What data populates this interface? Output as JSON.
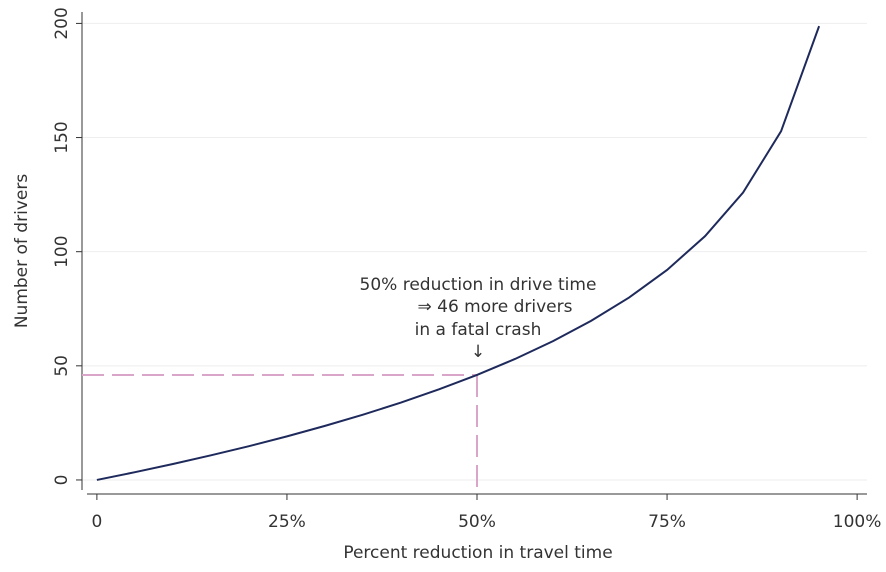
{
  "chart_data": {
    "type": "line",
    "x_label": "Percent reduction in travel time",
    "y_label": "Number of drivers",
    "x": [
      0,
      5,
      10,
      15,
      20,
      25,
      30,
      35,
      40,
      45,
      50,
      55,
      60,
      65,
      70,
      75,
      80,
      85,
      90,
      95
    ],
    "series": [
      {
        "color": "#1f2a5c",
        "values": [
          0,
          3.4,
          7.0,
          10.8,
          14.8,
          19.1,
          23.7,
          28.6,
          33.9,
          39.7,
          46,
          53.0,
          60.8,
          69.7,
          79.9,
          92.0,
          106.8,
          125.9,
          152.8,
          198.8
        ]
      }
    ],
    "xlim": [
      -1.3,
      101.3
    ],
    "ylim": [
      -4.4,
      205
    ],
    "xticks": [
      0,
      {
        "value": 25,
        "label": "25%"
      },
      {
        "value": 50,
        "label": "50%"
      },
      {
        "value": 75,
        "label": "75%"
      },
      {
        "value": 100,
        "label": "100%"
      }
    ],
    "yticks": [
      0,
      50,
      100,
      150,
      200
    ],
    "grid": true,
    "reference_point": {
      "x": 50,
      "y": 46,
      "color": "#d9a6c9"
    },
    "annotation": [
      "50% reduction in drive time",
      "⇒ 46 more drivers",
      "in a fatal crash",
      "↓"
    ]
  }
}
